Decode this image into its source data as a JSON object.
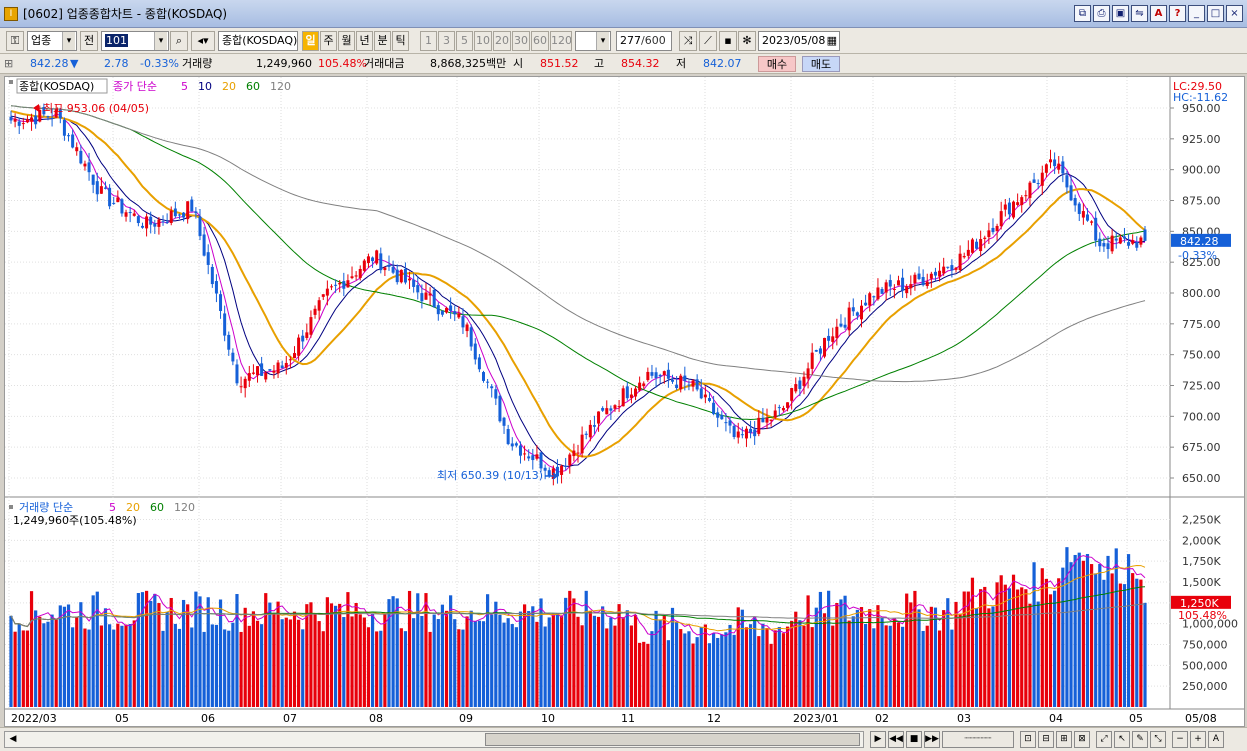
{
  "window": {
    "title": "[0602] 업종종합차트 - 종합(KOSDAQ)"
  },
  "toolbar": {
    "market": "업종",
    "prev_label": "전",
    "code": "101",
    "name": "종합(KOSDAQ)",
    "period_tabs": [
      "일",
      "주",
      "월",
      "년",
      "분",
      "틱"
    ],
    "active_period": "일",
    "minute_options": [
      "1",
      "3",
      "5",
      "10",
      "20",
      "30",
      "60",
      "120"
    ],
    "count": "277",
    "count_total": "/600",
    "date": "2023/05/08"
  },
  "quote": {
    "price": "842.28",
    "change": "2.78",
    "change_pct": "-0.33%",
    "volume_label": "거래량",
    "volume": "1,249,960",
    "volume_pct": "105.48%",
    "amount_label": "거래대금",
    "amount": "8,868,325백만",
    "open_label": "시",
    "open": "851.52",
    "high_label": "고",
    "high": "854.32",
    "low_label": "저",
    "low": "842.07",
    "buy_label": "매수",
    "sell_label": "매도"
  },
  "price_pane": {
    "title": "종합(KOSDAQ)",
    "legend_prefix": "종가 단순",
    "legend_ma": [
      {
        "label": "5",
        "color": "#cc00cc"
      },
      {
        "label": "10",
        "color": "#000080"
      },
      {
        "label": "20",
        "color": "#e8a000"
      },
      {
        "label": "60",
        "color": "#008000"
      },
      {
        "label": "120",
        "color": "#808080"
      }
    ],
    "lc": "LC:29.50",
    "hc": "HC:-11.62",
    "max_annotation": "최고 953.06 (04/05)",
    "min_annotation": "최저 650.39 (10/13)",
    "last_price_tag": "842.28",
    "last_change_tag": "-0.33%",
    "y_ticks": [
      "950.00",
      "925.00",
      "900.00",
      "875.00",
      "850.00",
      "825.00",
      "800.00",
      "775.00",
      "750.00",
      "725.00",
      "700.00",
      "675.00",
      "650.00"
    ]
  },
  "volume_pane": {
    "legend_prefix": "거래량 단순",
    "legend_ma": [
      {
        "label": "5",
        "color": "#cc00cc"
      },
      {
        "label": "20",
        "color": "#e8a000"
      },
      {
        "label": "60",
        "color": "#008000"
      },
      {
        "label": "120",
        "color": "#808080"
      }
    ],
    "current": "1,249,960주(105.48%)",
    "last_volume_tag": "1,250K",
    "last_pct_tag": "105.48%",
    "y_ticks": [
      "2,250K",
      "2,000K",
      "1,750K",
      "1,500K",
      "1,250K",
      "1,000,000",
      "750,000",
      "500,000",
      "250,000"
    ]
  },
  "x_axis": [
    "2022/03",
    "05",
    "06",
    "07",
    "08",
    "09",
    "10",
    "11",
    "12",
    "2023/01",
    "02",
    "03",
    "04",
    "05"
  ],
  "x_axis_right": "05/08",
  "colors": {
    "up": "#e8000b",
    "down": "#1560d8",
    "ma5": "#cc00cc",
    "ma10": "#000080",
    "ma20": "#e8a000",
    "ma60": "#008000",
    "ma120": "#808080"
  },
  "chart_data": {
    "type": "candlestick",
    "series_hint": "KOSDAQ composite daily candles with volume",
    "anchors": [
      {
        "x": "2022/03",
        "close": 940
      },
      {
        "x": "2022/04/05",
        "close": 945
      },
      {
        "x": "2022/05",
        "close": 880
      },
      {
        "x": "2022/05 mid",
        "close": 855
      },
      {
        "x": "2022/06",
        "close": 870
      },
      {
        "x": "2022/06 end",
        "close": 730
      },
      {
        "x": "2022/07",
        "close": 740
      },
      {
        "x": "2022/07 end",
        "close": 800
      },
      {
        "x": "2022/08",
        "close": 830
      },
      {
        "x": "2022/08 end",
        "close": 800
      },
      {
        "x": "2022/09",
        "close": 775
      },
      {
        "x": "2022/09 end",
        "close": 680
      },
      {
        "x": "2022/10/13",
        "close": 655
      },
      {
        "x": "2022/11",
        "close": 700
      },
      {
        "x": "2022/11 end",
        "close": 735
      },
      {
        "x": "2022/12",
        "close": 725
      },
      {
        "x": "2022/12 end",
        "close": 680
      },
      {
        "x": "2023/01",
        "close": 705
      },
      {
        "x": "2023/02",
        "close": 765
      },
      {
        "x": "2023/02 end",
        "close": 800
      },
      {
        "x": "2023/03",
        "close": 810
      },
      {
        "x": "2023/03 end",
        "close": 830
      },
      {
        "x": "2023/04",
        "close": 870
      },
      {
        "x": "2023/04 mid",
        "close": 905
      },
      {
        "x": "2023/04 end",
        "close": 840
      },
      {
        "x": "2023/05/08",
        "close": 842.28
      }
    ],
    "ylim": [
      640,
      960
    ],
    "volume_ylim": [
      0,
      2400000
    ]
  }
}
